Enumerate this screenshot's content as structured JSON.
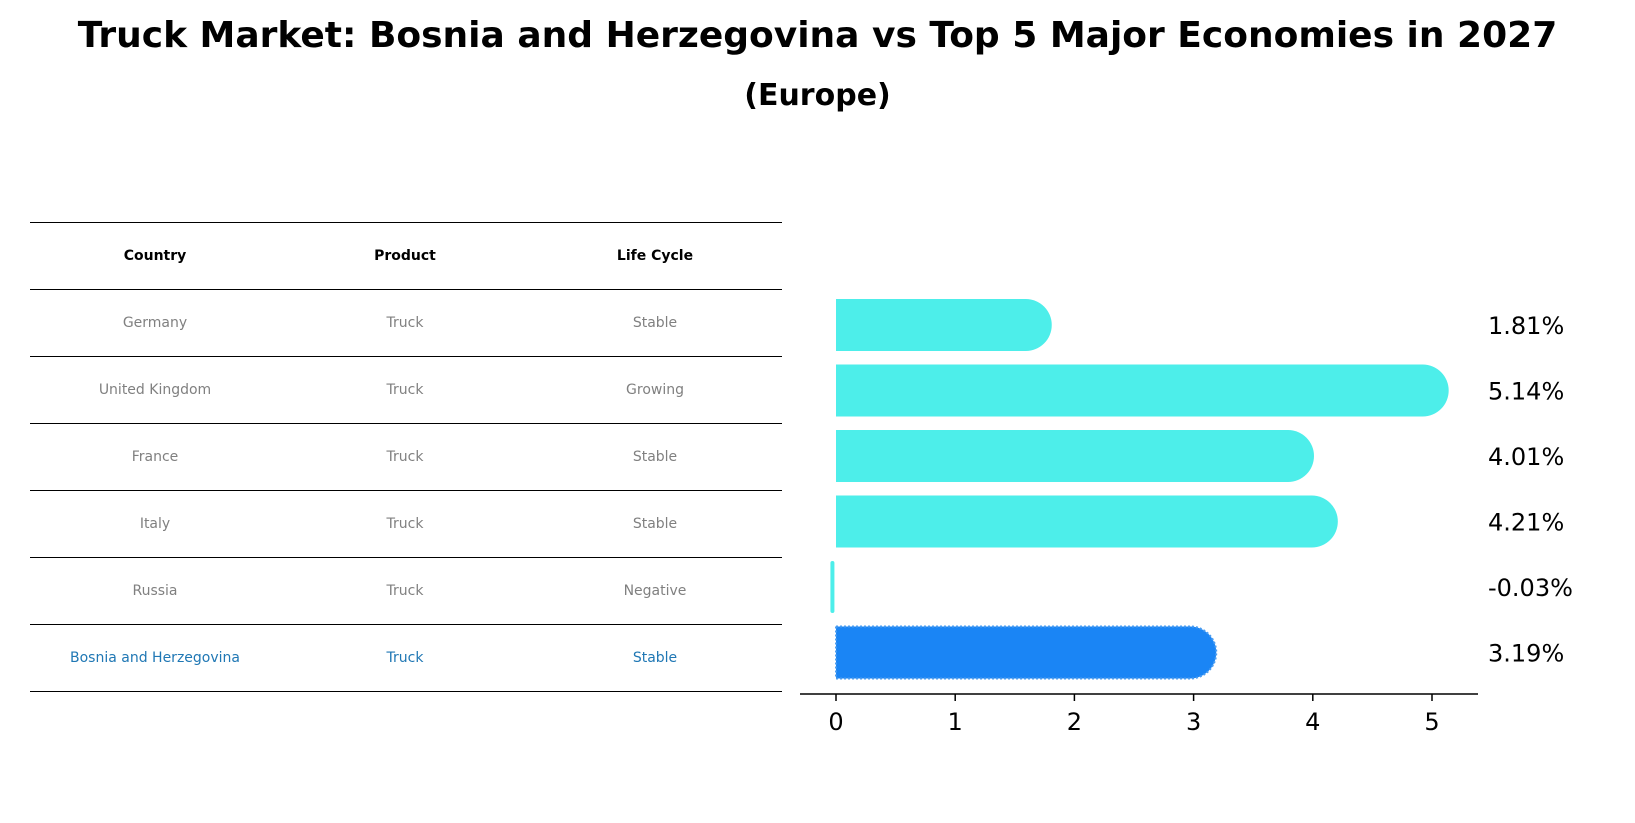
{
  "header": {
    "title": "Truck Market: Bosnia and Herzegovina vs Top 5 Major Economies in 2027",
    "subtitle": "(Europe)"
  },
  "table": {
    "columns": [
      "Country",
      "Product",
      "Life Cycle"
    ],
    "rows": [
      {
        "country": "Germany",
        "product": "Truck",
        "life_cycle": "Stable"
      },
      {
        "country": "United Kingdom",
        "product": "Truck",
        "life_cycle": "Growing"
      },
      {
        "country": "France",
        "product": "Truck",
        "life_cycle": "Stable"
      },
      {
        "country": "Italy",
        "product": "Truck",
        "life_cycle": "Stable"
      },
      {
        "country": "Russia",
        "product": "Truck",
        "life_cycle": "Negative"
      },
      {
        "country": "Bosnia and Herzegovina",
        "product": "Truck",
        "life_cycle": "Stable"
      }
    ],
    "header_color": "#000000",
    "text_color": "#808080",
    "highlight_color": "#1f77b4"
  },
  "chart_data": {
    "type": "bar",
    "orientation": "horizontal",
    "categories": [
      "Germany",
      "United Kingdom",
      "France",
      "Italy",
      "Russia",
      "Bosnia and Herzegovina"
    ],
    "values": [
      1.81,
      5.14,
      4.01,
      4.21,
      -0.03,
      3.19
    ],
    "value_labels": [
      "1.81%",
      "5.14%",
      "4.01%",
      "4.21%",
      "-0.03%",
      "3.19%"
    ],
    "xticks": [
      0,
      1,
      2,
      3,
      4,
      5
    ],
    "xlim": [
      -0.3,
      5.4
    ],
    "grid": false,
    "bar_color": "#4deeea",
    "highlight_color": "#1a85f5",
    "highlight_index": 5
  }
}
